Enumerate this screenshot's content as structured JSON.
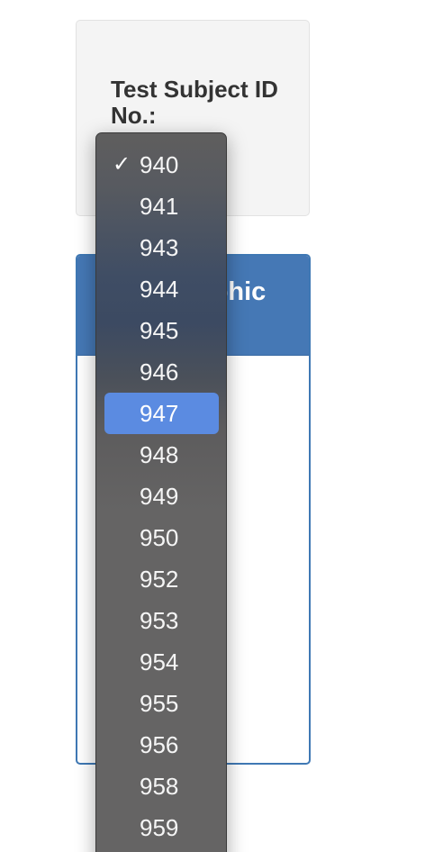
{
  "form": {
    "subject_label": "Test Subject ID No.:"
  },
  "panel": {
    "title": "Demographic"
  },
  "dropdown": {
    "selected_value": "940",
    "highlighted_value": "947",
    "check_glyph": "✓",
    "options": [
      "940",
      "941",
      "943",
      "944",
      "945",
      "946",
      "947",
      "948",
      "949",
      "950",
      "952",
      "953",
      "954",
      "955",
      "956",
      "958",
      "959"
    ]
  }
}
